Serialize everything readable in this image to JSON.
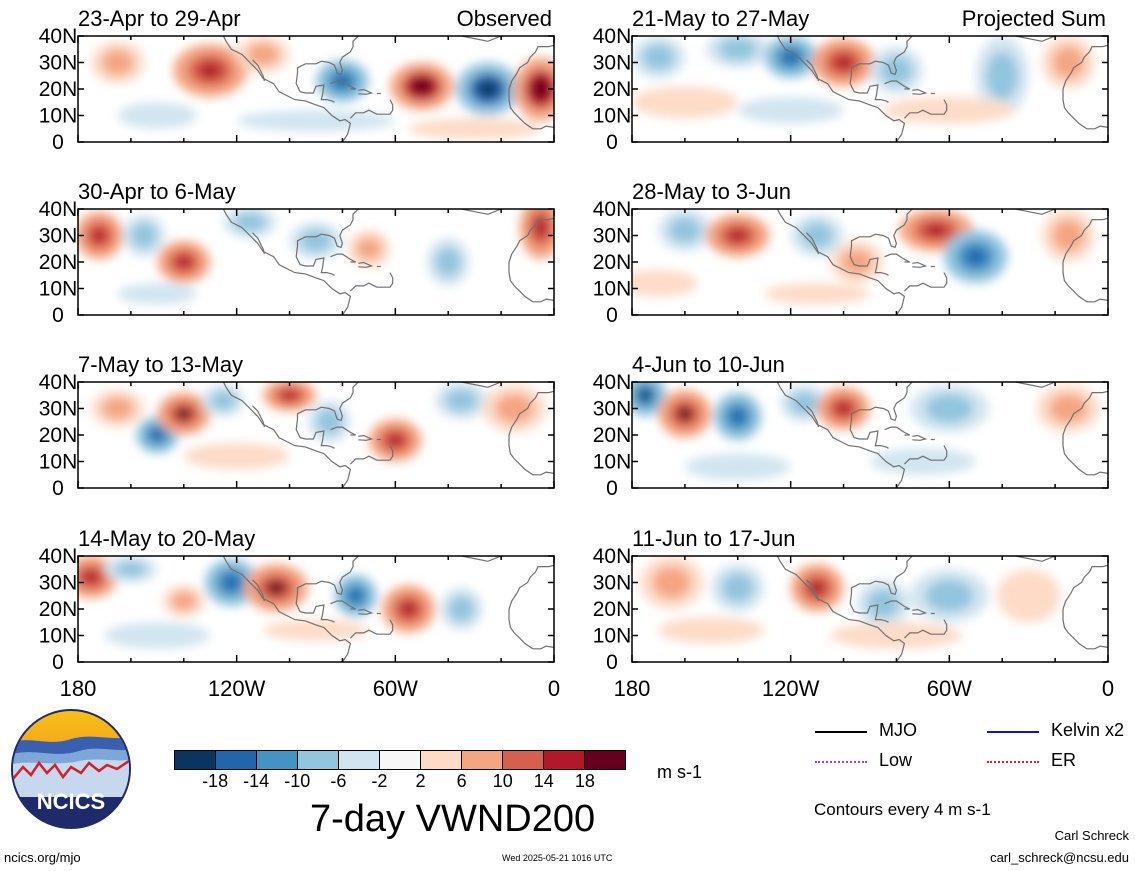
{
  "panels": [
    {
      "id": "p1",
      "label": "23-Apr to 29-Apr",
      "tag": "Observed"
    },
    {
      "id": "p2",
      "label": "21-May to 27-May",
      "tag": "Projected Sum"
    },
    {
      "id": "p3",
      "label": "30-Apr to 6-May",
      "tag": ""
    },
    {
      "id": "p4",
      "label": "28-May to 3-Jun",
      "tag": ""
    },
    {
      "id": "p5",
      "label": "7-May to 13-May",
      "tag": ""
    },
    {
      "id": "p6",
      "label": "4-Jun to 10-Jun",
      "tag": ""
    },
    {
      "id": "p7",
      "label": "14-May to 20-May",
      "tag": ""
    },
    {
      "id": "p8",
      "label": "11-Jun to 17-Jun",
      "tag": ""
    }
  ],
  "lat_ticks": [
    "40N",
    "30N",
    "20N",
    "10N",
    "0"
  ],
  "lon_ticks": [
    "180",
    "120W",
    "60W",
    "0"
  ],
  "colorbar": {
    "labels": [
      "-18",
      "-14",
      "-10",
      "-6",
      "-2",
      "2",
      "6",
      "10",
      "14",
      "18"
    ],
    "colors": [
      "#0b3561",
      "#2166ac",
      "#4393c3",
      "#92c5de",
      "#d1e5f0",
      "#f7f7f7",
      "#fddbc7",
      "#f4a582",
      "#d6604d",
      "#b2182b",
      "#67001f"
    ],
    "units": "m s-1"
  },
  "legend": {
    "items": [
      {
        "label": "MJO",
        "color": "#000000",
        "style": "solid"
      },
      {
        "label": "Kelvin x2",
        "color": "#1010d0",
        "style": "solid"
      },
      {
        "label": "Low",
        "color": "#a040e0",
        "style": "dotted"
      },
      {
        "label": "ER",
        "color": "#e02020",
        "style": "dotted"
      }
    ],
    "note": "Contours every 4 m s-1"
  },
  "title": "7-day VWND200",
  "logo_text": "NCICS",
  "footer": {
    "url": "ncics.org/mjo",
    "timestamp": "Wed 2025-05-21 1016 UTC",
    "author": "Carl Schreck",
    "email": "carl_schreck@ncsu.edu"
  }
}
